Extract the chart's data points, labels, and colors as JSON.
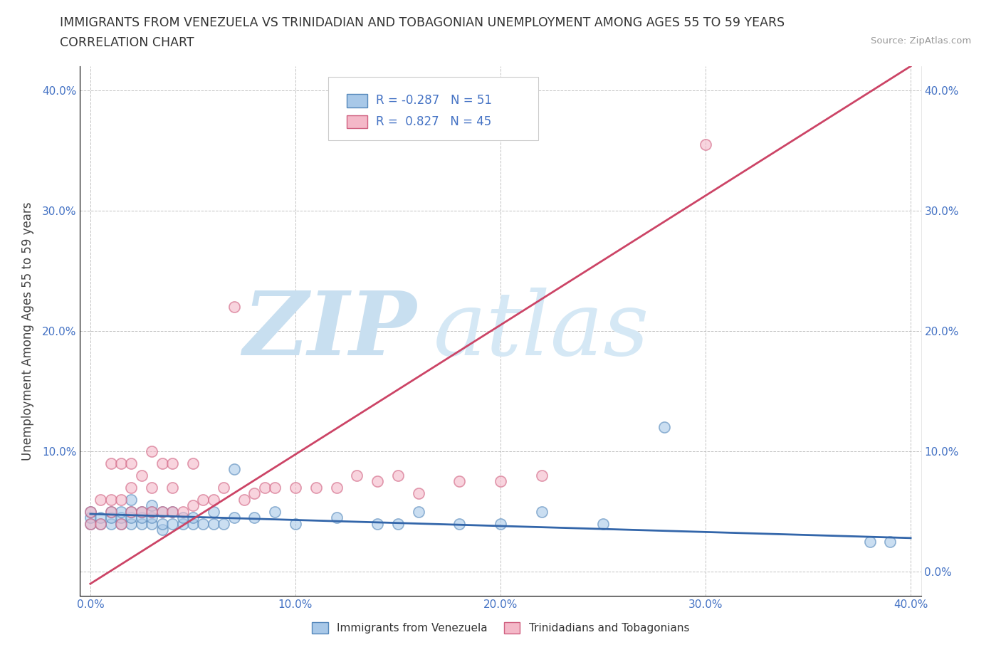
{
  "title_line1": "IMMIGRANTS FROM VENEZUELA VS TRINIDADIAN AND TOBAGONIAN UNEMPLOYMENT AMONG AGES 55 TO 59 YEARS",
  "title_line2": "CORRELATION CHART",
  "source_text": "Source: ZipAtlas.com",
  "ylabel": "Unemployment Among Ages 55 to 59 years",
  "xlim": [
    -0.005,
    0.405
  ],
  "ylim": [
    -0.02,
    0.42
  ],
  "xticks": [
    0.0,
    0.1,
    0.2,
    0.3,
    0.4
  ],
  "yticks": [
    0.0,
    0.1,
    0.2,
    0.3,
    0.4
  ],
  "blue_R": -0.287,
  "blue_N": 51,
  "pink_R": 0.827,
  "pink_N": 45,
  "blue_color": "#a8c8e8",
  "pink_color": "#f4b8c8",
  "blue_edge_color": "#5588bb",
  "pink_edge_color": "#d06080",
  "blue_line_color": "#3366aa",
  "pink_line_color": "#cc4466",
  "watermark_zip_color": "#c8dff0",
  "watermark_atlas_color": "#d5e8f5",
  "background_color": "#ffffff",
  "tick_color": "#4472c4",
  "blue_scatter_x": [
    0.0,
    0.0,
    0.0,
    0.005,
    0.005,
    0.01,
    0.01,
    0.01,
    0.015,
    0.015,
    0.015,
    0.02,
    0.02,
    0.02,
    0.02,
    0.025,
    0.025,
    0.025,
    0.03,
    0.03,
    0.03,
    0.03,
    0.035,
    0.035,
    0.035,
    0.04,
    0.04,
    0.045,
    0.045,
    0.05,
    0.05,
    0.055,
    0.06,
    0.06,
    0.065,
    0.07,
    0.07,
    0.08,
    0.09,
    0.1,
    0.12,
    0.14,
    0.15,
    0.16,
    0.18,
    0.2,
    0.22,
    0.25,
    0.28,
    0.38,
    0.39
  ],
  "blue_scatter_y": [
    0.04,
    0.045,
    0.05,
    0.04,
    0.045,
    0.04,
    0.045,
    0.05,
    0.04,
    0.045,
    0.05,
    0.04,
    0.045,
    0.05,
    0.06,
    0.04,
    0.045,
    0.05,
    0.04,
    0.045,
    0.05,
    0.055,
    0.035,
    0.04,
    0.05,
    0.04,
    0.05,
    0.04,
    0.045,
    0.04,
    0.045,
    0.04,
    0.04,
    0.05,
    0.04,
    0.045,
    0.085,
    0.045,
    0.05,
    0.04,
    0.045,
    0.04,
    0.04,
    0.05,
    0.04,
    0.04,
    0.05,
    0.04,
    0.12,
    0.025,
    0.025
  ],
  "pink_scatter_x": [
    0.0,
    0.0,
    0.005,
    0.005,
    0.01,
    0.01,
    0.01,
    0.015,
    0.015,
    0.015,
    0.02,
    0.02,
    0.02,
    0.025,
    0.025,
    0.03,
    0.03,
    0.03,
    0.035,
    0.035,
    0.04,
    0.04,
    0.04,
    0.045,
    0.05,
    0.05,
    0.055,
    0.06,
    0.065,
    0.07,
    0.075,
    0.08,
    0.085,
    0.09,
    0.1,
    0.11,
    0.12,
    0.13,
    0.14,
    0.15,
    0.16,
    0.18,
    0.2,
    0.22,
    0.3
  ],
  "pink_scatter_y": [
    0.04,
    0.05,
    0.04,
    0.06,
    0.05,
    0.06,
    0.09,
    0.04,
    0.06,
    0.09,
    0.05,
    0.07,
    0.09,
    0.05,
    0.08,
    0.05,
    0.07,
    0.1,
    0.05,
    0.09,
    0.05,
    0.07,
    0.09,
    0.05,
    0.055,
    0.09,
    0.06,
    0.06,
    0.07,
    0.22,
    0.06,
    0.065,
    0.07,
    0.07,
    0.07,
    0.07,
    0.07,
    0.08,
    0.075,
    0.08,
    0.065,
    0.075,
    0.075,
    0.08,
    0.355
  ],
  "legend_label_blue": "Immigrants from Venezuela",
  "legend_label_pink": "Trinidadians and Tobagonians",
  "blue_trend_x": [
    0.0,
    0.4
  ],
  "blue_trend_y": [
    0.048,
    0.028
  ],
  "pink_trend_x": [
    0.0,
    0.4
  ],
  "pink_trend_y": [
    -0.01,
    0.42
  ]
}
